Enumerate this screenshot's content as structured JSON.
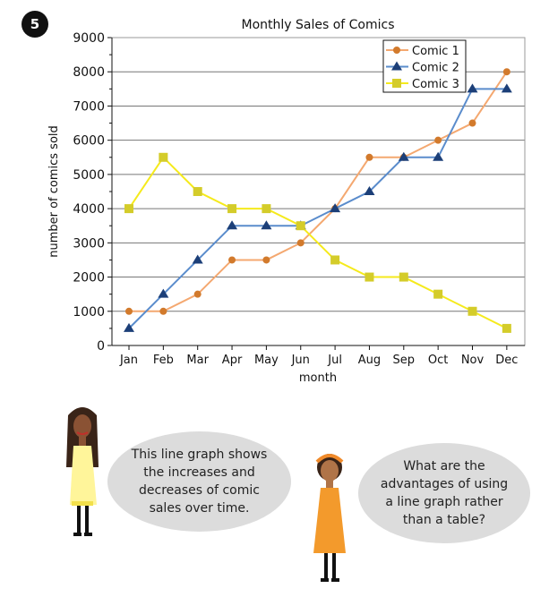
{
  "question_number": "5",
  "chart_data": {
    "type": "line",
    "title": "Monthly Sales of Comics",
    "xlabel": "month",
    "ylabel": "number of comics sold",
    "ylim": [
      0,
      9000
    ],
    "yticks": [
      0,
      1000,
      2000,
      3000,
      4000,
      5000,
      6000,
      7000,
      8000,
      9000
    ],
    "grid": true,
    "legend_position": "top-right",
    "categories": [
      "Jan",
      "Feb",
      "Mar",
      "Apr",
      "May",
      "Jun",
      "Jul",
      "Aug",
      "Sep",
      "Oct",
      "Nov",
      "Dec"
    ],
    "series": [
      {
        "name": "Comic 1",
        "marker": "circle",
        "line_color": "#f4a870",
        "marker_color": "#d27a2c",
        "values": [
          1000,
          1000,
          1500,
          2500,
          2500,
          3000,
          4000,
          5500,
          5500,
          6000,
          6500,
          8000
        ]
      },
      {
        "name": "Comic 2",
        "marker": "triangle",
        "line_color": "#5a8ccc",
        "marker_color": "#1c3f78",
        "values": [
          500,
          1500,
          2500,
          3500,
          3500,
          3500,
          4000,
          4500,
          5500,
          5500,
          7500,
          7500
        ]
      },
      {
        "name": "Comic 3",
        "marker": "square",
        "line_color": "#f5ea1c",
        "marker_color": "#d4cc2a",
        "values": [
          4000,
          5500,
          4500,
          4000,
          4000,
          3500,
          2500,
          2000,
          2000,
          1500,
          1000,
          500
        ]
      }
    ]
  },
  "speech": {
    "left": "This line graph shows the increases and decreases of comic sales over time.",
    "right": "What are the advantages of using a line graph rather than a table?"
  }
}
